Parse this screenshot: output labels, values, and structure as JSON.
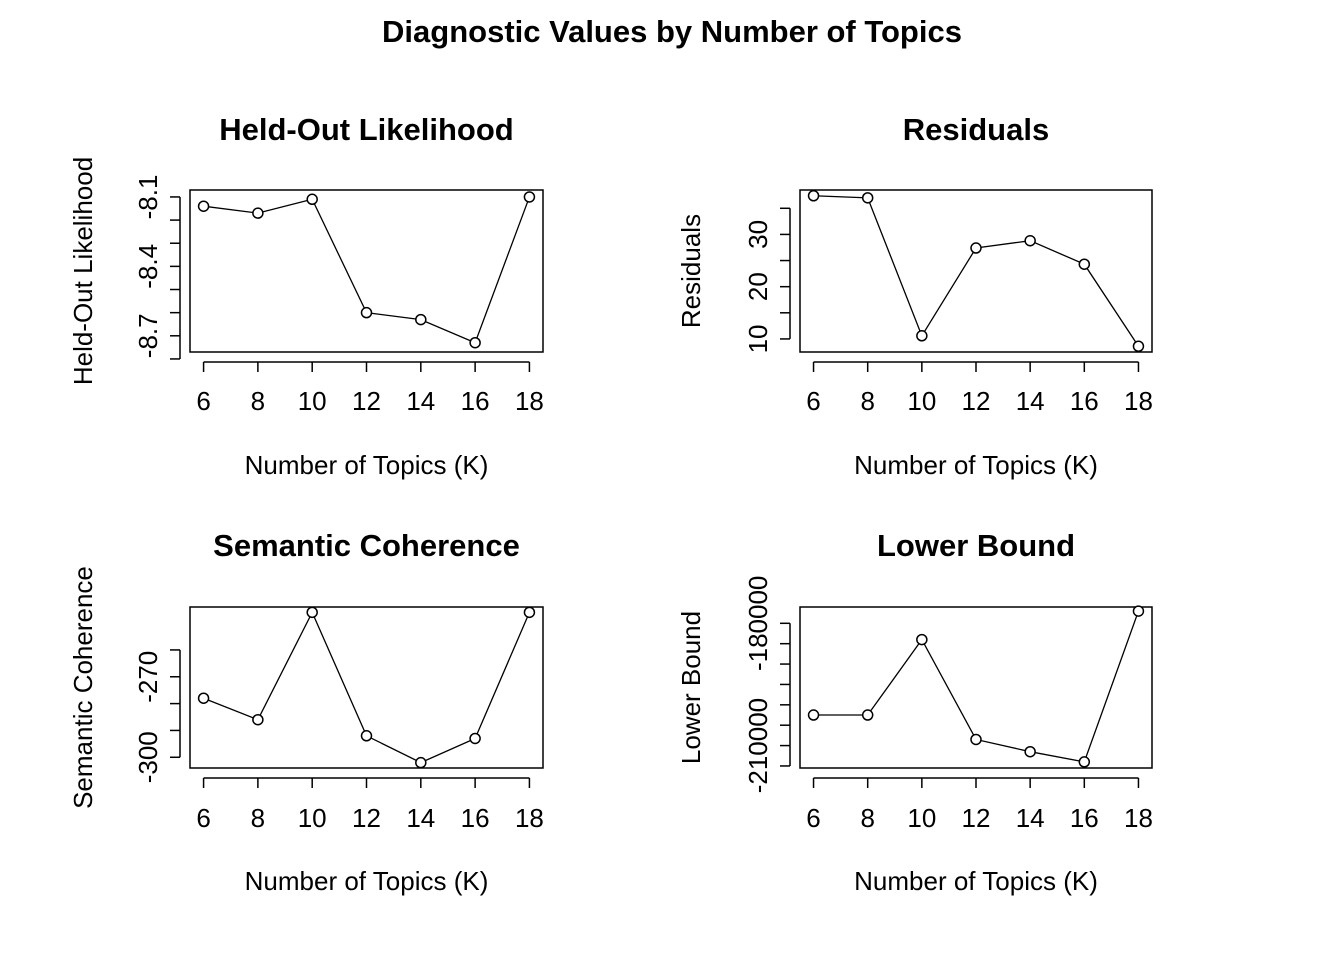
{
  "title": "Diagnostic Values by Number of Topics",
  "chart_data": [
    {
      "type": "line",
      "title": "Held-Out Likelihood",
      "xlabel": "Number of Topics (K)",
      "ylabel": "Held-Out Likelihood",
      "x": [
        6,
        8,
        10,
        12,
        14,
        16,
        18
      ],
      "values": [
        -8.14,
        -8.17,
        -8.11,
        -8.6,
        -8.63,
        -8.73,
        -8.1
      ],
      "xlim": [
        5.5,
        18.5
      ],
      "ylim": [
        -8.77,
        -8.07
      ],
      "xticks": [
        6,
        8,
        10,
        12,
        14,
        16,
        18
      ],
      "yticks": [
        -8.8,
        -8.7,
        -8.6,
        -8.5,
        -8.4,
        -8.3,
        -8.2,
        -8.1
      ],
      "ytick_labels": [
        "",
        "-8.7",
        "",
        "",
        "-8.4",
        "",
        "",
        "-8.1"
      ],
      "marker": "open-circle",
      "grid": false
    },
    {
      "type": "line",
      "title": "Residuals",
      "xlabel": "Number of Topics (K)",
      "ylabel": "Residuals",
      "x": [
        6,
        8,
        10,
        12,
        14,
        16,
        18
      ],
      "values": [
        37.4,
        37.0,
        10.6,
        27.4,
        28.8,
        24.3,
        8.6
      ],
      "xlim": [
        5.5,
        18.5
      ],
      "ylim": [
        7.5,
        38.5
      ],
      "xticks": [
        6,
        8,
        10,
        12,
        14,
        16,
        18
      ],
      "yticks": [
        10,
        15,
        20,
        25,
        30,
        35
      ],
      "ytick_labels": [
        "10",
        "",
        "20",
        "",
        "30",
        ""
      ],
      "marker": "open-circle",
      "grid": false
    },
    {
      "type": "line",
      "title": "Semantic Coherence",
      "xlabel": "Number of Topics (K)",
      "ylabel": "Semantic Coherence",
      "x": [
        6,
        8,
        10,
        12,
        14,
        16,
        18
      ],
      "values": [
        -278,
        -286,
        -246,
        -292,
        -302,
        -293,
        -246
      ],
      "xlim": [
        5.5,
        18.5
      ],
      "ylim": [
        -304,
        -244
      ],
      "xticks": [
        6,
        8,
        10,
        12,
        14,
        16,
        18
      ],
      "yticks": [
        -300,
        -290,
        -280,
        -270,
        -260
      ],
      "ytick_labels": [
        "-300",
        "",
        "",
        "-270",
        ""
      ],
      "marker": "open-circle",
      "grid": false
    },
    {
      "type": "line",
      "title": "Lower Bound",
      "xlabel": "Number of Topics (K)",
      "ylabel": "Lower Bound",
      "x": [
        6,
        8,
        10,
        12,
        14,
        16,
        18
      ],
      "values": [
        -202500,
        -202500,
        -184000,
        -208500,
        -211500,
        -214000,
        -177000
      ],
      "xlim": [
        5.5,
        18.5
      ],
      "ylim": [
        -215500,
        -176000
      ],
      "xticks": [
        6,
        8,
        10,
        12,
        14,
        16,
        18
      ],
      "yticks": [
        -215000,
        -210000,
        -205000,
        -200000,
        -195000,
        -190000,
        -185000,
        -180000
      ],
      "ytick_labels": [
        "",
        "-210000",
        "",
        "",
        "",
        "",
        "",
        "-180000"
      ],
      "marker": "open-circle",
      "grid": false
    }
  ]
}
